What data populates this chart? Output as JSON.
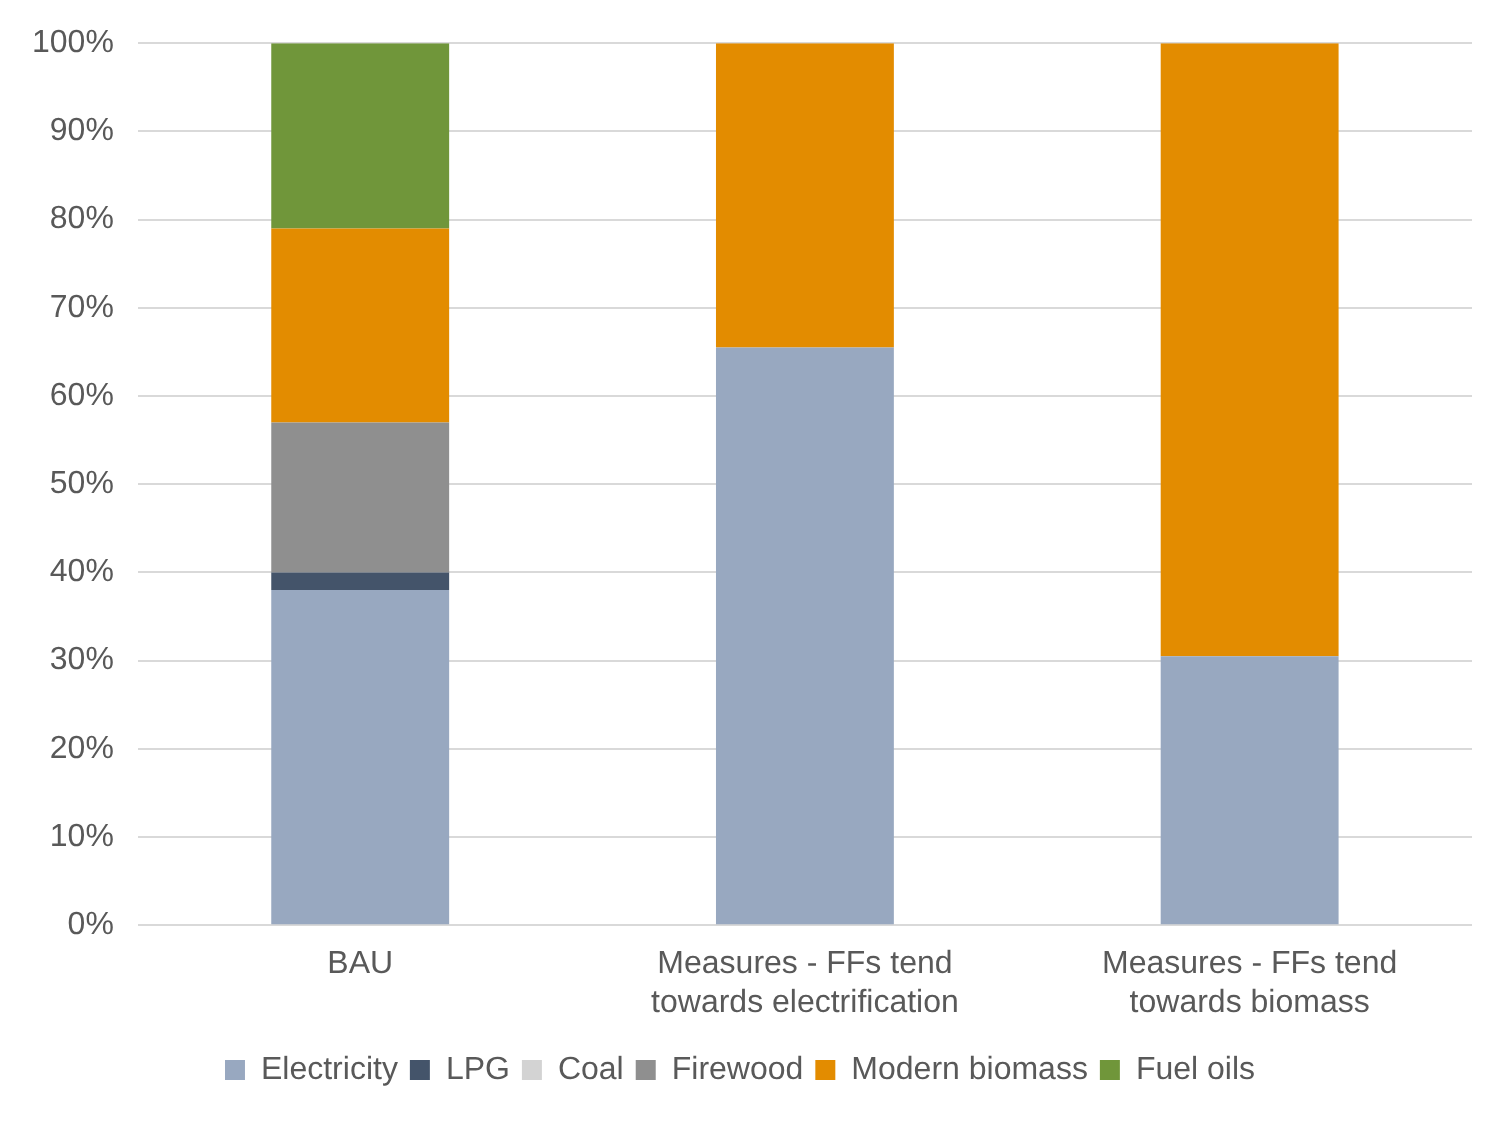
{
  "chart_data": {
    "type": "bar",
    "stacked": true,
    "categories": [
      "BAU",
      "Measures - FFs tend towards electrification",
      "Measures - FFs tend towards biomass"
    ],
    "series": [
      {
        "name": "Electricity",
        "color": "#98a8c0",
        "values": [
          38,
          65.5,
          30.5
        ]
      },
      {
        "name": "LPG",
        "color": "#44546a",
        "values": [
          2,
          0,
          0
        ]
      },
      {
        "name": "Coal",
        "color": "#d3d3d3",
        "values": [
          0,
          0,
          0
        ]
      },
      {
        "name": "Firewood",
        "color": "#8f8f8f",
        "values": [
          17,
          0,
          0
        ]
      },
      {
        "name": "Modern biomass",
        "color": "#e38c00",
        "values": [
          22,
          34.5,
          69.5
        ]
      },
      {
        "name": "Fuel oils",
        "color": "#70963a",
        "values": [
          21,
          0,
          0
        ]
      }
    ],
    "ylim": [
      0,
      100
    ],
    "yticks": [
      {
        "value": 0,
        "label": "0%"
      },
      {
        "value": 10,
        "label": "10%"
      },
      {
        "value": 20,
        "label": "20%"
      },
      {
        "value": 30,
        "label": "30%"
      },
      {
        "value": 40,
        "label": "40%"
      },
      {
        "value": 50,
        "label": "50%"
      },
      {
        "value": 60,
        "label": "60%"
      },
      {
        "value": 70,
        "label": "70%"
      },
      {
        "value": 80,
        "label": "80%"
      },
      {
        "value": 90,
        "label": "90%"
      },
      {
        "value": 100,
        "label": "100%"
      }
    ],
    "grid": "y",
    "legend": "bottom"
  }
}
